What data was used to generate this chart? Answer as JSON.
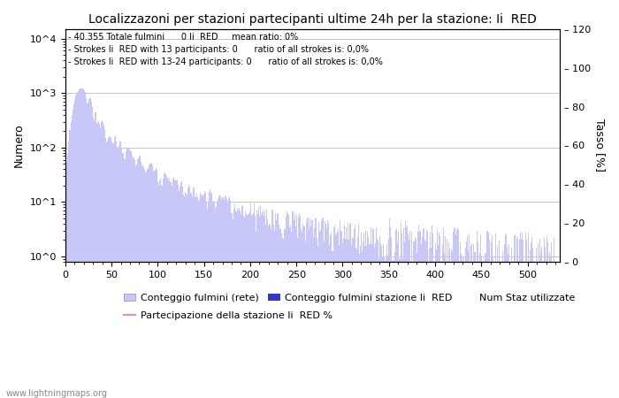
{
  "title": "Localizzazoni per stazioni partecipanti ultime 24h per la stazione: Ii  RED",
  "ylabel_left": "Numero",
  "ylabel_right": "Tasso [%]",
  "annotation_lines": [
    "40.355 Totale fulmini      0 Ii  RED     mean ratio: 0%",
    "Strokes Ii  RED with 13 participants: 0      ratio of all strokes is: 0,0%",
    "Strokes Ii  RED with 13-24 participants: 0      ratio of all strokes is: 0,0%"
  ],
  "watermark": "www.lightningmaps.org",
  "legend_labels": [
    "Conteggio fulmini (rete)",
    "Conteggio fulmini stazione Ii  RED",
    "Partecipazione della stazione Ii  RED %",
    "Num Staz utilizzate"
  ],
  "bar_color": "#c8c8f8",
  "bar_color_station": "#3838c8",
  "line_color": "#e888c8",
  "xlim": [
    0,
    535
  ],
  "ylim_right": [
    0,
    120
  ],
  "right_yticks": [
    0,
    20,
    40,
    60,
    80,
    100,
    120
  ],
  "xticks": [
    0,
    50,
    100,
    150,
    200,
    250,
    300,
    350,
    400,
    450,
    500
  ],
  "figsize": [
    7.0,
    4.5
  ],
  "dpi": 100
}
